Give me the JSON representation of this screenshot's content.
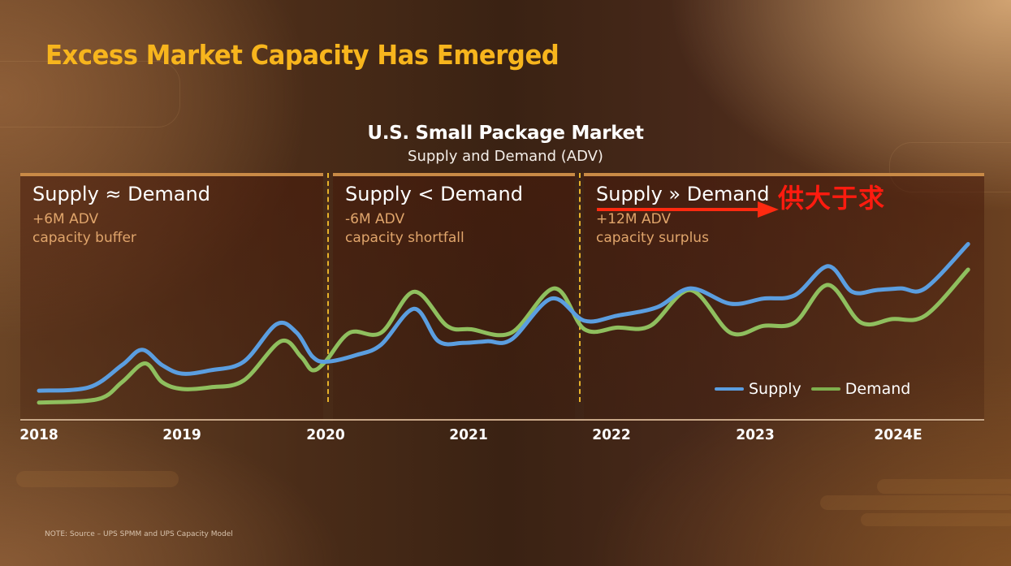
{
  "slide": {
    "title": "Excess Market Capacity Has Emerged",
    "note": "NOTE: Source – UPS SPMM and UPS Capacity Model",
    "annotation": "供大于求",
    "colors": {
      "title": "#f7b51d",
      "supply": "#5b9ee0",
      "demand": "#8fbf5e",
      "divider": "#e8b22a",
      "panel_border": "#c98a46",
      "annotation": "#ff1b0f"
    }
  },
  "panels": [
    {
      "heading": "Supply ≈ Demand",
      "value": "+6M ADV",
      "desc": "capacity buffer"
    },
    {
      "heading": "Supply < Demand",
      "value": "-6M ADV",
      "desc": "capacity shortfall"
    },
    {
      "heading": "Supply » Demand",
      "value": "+12M ADV",
      "desc": "capacity surplus"
    }
  ],
  "chart_data": {
    "type": "line",
    "title": "U.S. Small Package Market",
    "subtitle": "Supply and Demand (ADV)",
    "xlabel": "",
    "ylabel": "",
    "y_units": "relative (no y-axis scale shown; 0–100 estimated)",
    "xlim": [
      2018,
      2024.75
    ],
    "ylim": [
      0,
      100
    ],
    "grid": false,
    "legend_position": "bottom-right",
    "x_ticks": [
      "2018",
      "2019",
      "2020",
      "2021",
      "2022",
      "2023",
      "2024E"
    ],
    "x_tick_values": [
      2018,
      2019,
      2020,
      2021,
      2022,
      2023,
      2024
    ],
    "period_dividers": [
      2020,
      2021.9
    ],
    "series": [
      {
        "name": "Supply",
        "points": [
          [
            2018.0,
            9
          ],
          [
            2018.35,
            11
          ],
          [
            2018.58,
            24
          ],
          [
            2018.72,
            33
          ],
          [
            2018.86,
            24
          ],
          [
            2019.0,
            19
          ],
          [
            2019.2,
            21
          ],
          [
            2019.43,
            26
          ],
          [
            2019.66,
            48
          ],
          [
            2019.8,
            43
          ],
          [
            2019.91,
            29
          ],
          [
            2020.01,
            26
          ],
          [
            2020.22,
            30
          ],
          [
            2020.39,
            36
          ],
          [
            2020.62,
            57
          ],
          [
            2020.79,
            38
          ],
          [
            2020.96,
            37
          ],
          [
            2021.13,
            38
          ],
          [
            2021.3,
            39
          ],
          [
            2021.58,
            63
          ],
          [
            2021.81,
            50
          ],
          [
            2022.04,
            53
          ],
          [
            2022.32,
            58
          ],
          [
            2022.55,
            69
          ],
          [
            2022.83,
            60
          ],
          [
            2023.06,
            63
          ],
          [
            2023.28,
            65
          ],
          [
            2023.51,
            82
          ],
          [
            2023.68,
            67
          ],
          [
            2023.85,
            68
          ],
          [
            2024.02,
            69
          ],
          [
            2024.19,
            69
          ],
          [
            2024.49,
            95
          ]
        ]
      },
      {
        "name": "Demand",
        "points": [
          [
            2018.0,
            2
          ],
          [
            2018.41,
            4
          ],
          [
            2018.58,
            14
          ],
          [
            2018.74,
            25
          ],
          [
            2018.86,
            14
          ],
          [
            2019.0,
            10
          ],
          [
            2019.2,
            11
          ],
          [
            2019.43,
            15
          ],
          [
            2019.69,
            38
          ],
          [
            2019.83,
            29
          ],
          [
            2019.91,
            21
          ],
          [
            2020.0,
            26
          ],
          [
            2020.17,
            43
          ],
          [
            2020.39,
            43
          ],
          [
            2020.62,
            67
          ],
          [
            2020.85,
            47
          ],
          [
            2021.02,
            45
          ],
          [
            2021.3,
            43
          ],
          [
            2021.6,
            69
          ],
          [
            2021.81,
            45
          ],
          [
            2022.04,
            46
          ],
          [
            2022.27,
            47
          ],
          [
            2022.55,
            68
          ],
          [
            2022.83,
            43
          ],
          [
            2023.06,
            47
          ],
          [
            2023.28,
            49
          ],
          [
            2023.51,
            71
          ],
          [
            2023.74,
            49
          ],
          [
            2023.96,
            51
          ],
          [
            2024.19,
            53
          ],
          [
            2024.49,
            80
          ]
        ]
      }
    ]
  }
}
